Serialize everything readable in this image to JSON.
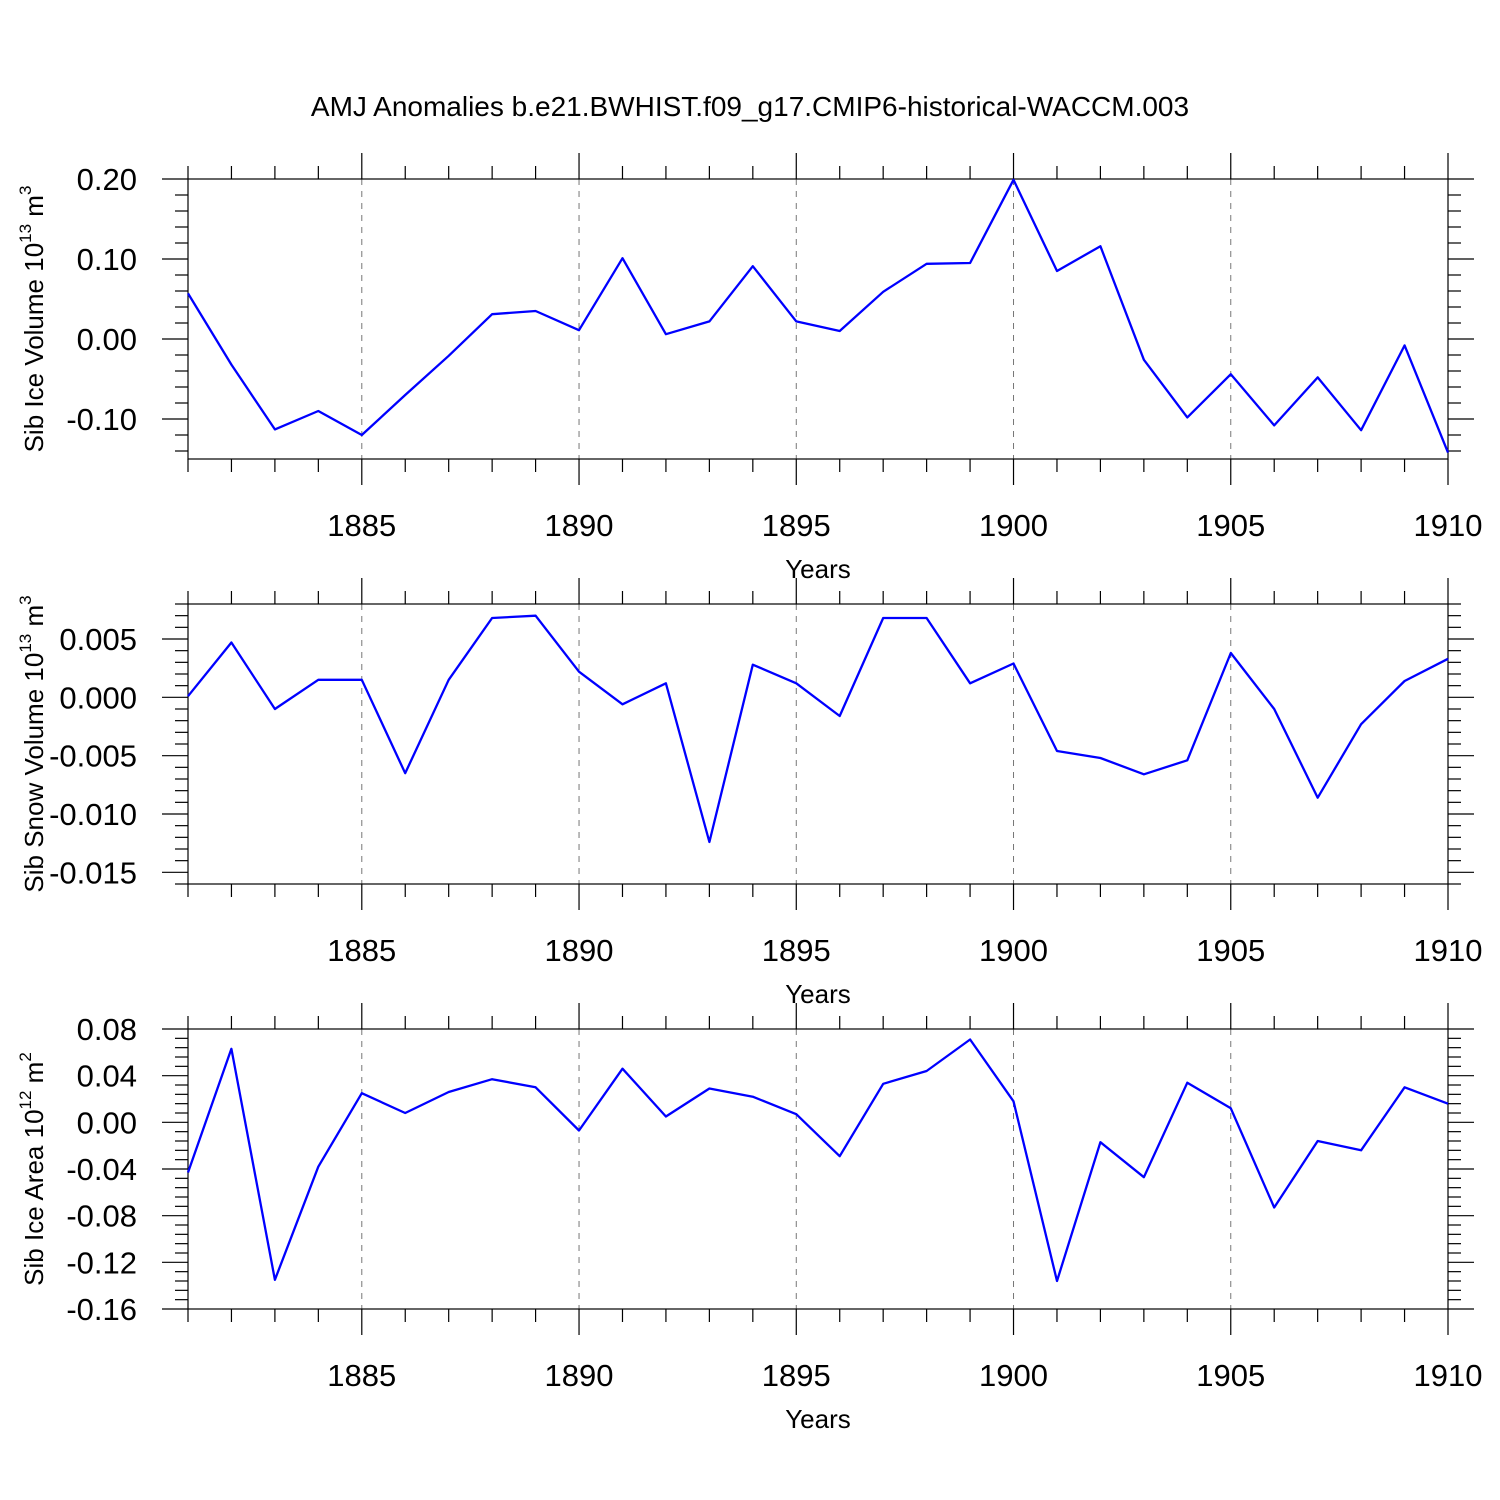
{
  "title": "AMJ Anomalies b.e21.BWHIST.f09_g17.CMIP6-historical-WACCM.003",
  "colors": {
    "line": "#0000ff",
    "axis": "#000000",
    "grid": "#777777"
  },
  "chart_data": [
    {
      "type": "line",
      "ylabel": "Sib Ice Volume 10",
      "ylabel_exp": "13",
      "ylabel_unit": " m",
      "ylabel_unit_exp": "3",
      "xlabel": "Years",
      "xlim": [
        1881,
        1910
      ],
      "ylim": [
        -0.15,
        0.2
      ],
      "yticks": [
        0.2,
        0.1,
        0.0,
        -0.1
      ],
      "ytick_labels": [
        "0.20",
        "0.10",
        "0.00",
        "-0.10"
      ],
      "yminor_step": 0.02,
      "xticks": [
        1885,
        1890,
        1895,
        1900,
        1905,
        1910
      ],
      "xtick_labels": [
        "1885",
        "1890",
        "1895",
        "1900",
        "1905",
        "1910"
      ],
      "grid_x": true,
      "series": [
        {
          "name": "Sib Ice Volume",
          "x": [
            1881,
            1882,
            1883,
            1884,
            1885,
            1886,
            1887,
            1888,
            1889,
            1890,
            1891,
            1892,
            1893,
            1894,
            1895,
            1896,
            1897,
            1898,
            1899,
            1900,
            1901,
            1902,
            1903,
            1904,
            1905,
            1906,
            1907,
            1908,
            1909,
            1910
          ],
          "values": [
            0.057,
            -0.032,
            -0.113,
            -0.09,
            -0.12,
            -0.07,
            -0.021,
            0.031,
            0.035,
            0.011,
            0.101,
            0.006,
            0.022,
            0.091,
            0.022,
            0.01,
            0.059,
            0.094,
            0.095,
            0.199,
            0.085,
            0.116,
            -0.026,
            -0.098,
            -0.044,
            -0.108,
            -0.048,
            -0.114,
            -0.008,
            -0.142
          ]
        }
      ]
    },
    {
      "type": "line",
      "ylabel": "Sib Snow Volume 10",
      "ylabel_exp": "13",
      "ylabel_unit": " m",
      "ylabel_unit_exp": "3",
      "xlabel": "Years",
      "xlim": [
        1881,
        1910
      ],
      "ylim": [
        -0.016,
        0.008
      ],
      "yticks": [
        0.005,
        0.0,
        -0.005,
        -0.01,
        -0.015
      ],
      "ytick_labels": [
        "0.005",
        "0.000",
        "-0.005",
        "-0.010",
        "-0.015"
      ],
      "yminor_step": 0.001,
      "xticks": [
        1885,
        1890,
        1895,
        1900,
        1905,
        1910
      ],
      "xtick_labels": [
        "1885",
        "1890",
        "1895",
        "1900",
        "1905",
        "1910"
      ],
      "grid_x": true,
      "series": [
        {
          "name": "Sib Snow Volume",
          "x": [
            1881,
            1882,
            1883,
            1884,
            1885,
            1886,
            1887,
            1888,
            1889,
            1890,
            1891,
            1892,
            1893,
            1894,
            1895,
            1896,
            1897,
            1898,
            1899,
            1900,
            1901,
            1902,
            1903,
            1904,
            1905,
            1906,
            1907,
            1908,
            1909,
            1910
          ],
          "values": [
            0.0001,
            0.0047,
            -0.001,
            0.0015,
            0.0015,
            -0.0065,
            0.0015,
            0.0068,
            0.007,
            0.0022,
            -0.0006,
            0.0012,
            -0.0124,
            0.0028,
            0.0012,
            -0.0016,
            0.0068,
            0.0068,
            0.0012,
            0.0029,
            -0.0046,
            -0.0052,
            -0.0066,
            -0.0054,
            0.0038,
            -0.001,
            -0.0086,
            -0.0023,
            0.0014,
            0.0033
          ]
        }
      ]
    },
    {
      "type": "line",
      "ylabel": "Sib Ice Area 10",
      "ylabel_exp": "12",
      "ylabel_unit": " m",
      "ylabel_unit_exp": "2",
      "xlabel": "Years",
      "xlim": [
        1881,
        1910
      ],
      "ylim": [
        -0.16,
        0.08
      ],
      "yticks": [
        0.08,
        0.04,
        0.0,
        -0.04,
        -0.08,
        -0.12,
        -0.16
      ],
      "ytick_labels": [
        "0.08",
        "0.04",
        "0.00",
        "-0.04",
        "-0.08",
        "-0.12",
        "-0.16"
      ],
      "yminor_step": 0.008,
      "xticks": [
        1885,
        1890,
        1895,
        1900,
        1905,
        1910
      ],
      "xtick_labels": [
        "1885",
        "1890",
        "1895",
        "1900",
        "1905",
        "1910"
      ],
      "grid_x": true,
      "series": [
        {
          "name": "Sib Ice Area",
          "x": [
            1881,
            1882,
            1883,
            1884,
            1885,
            1886,
            1887,
            1888,
            1889,
            1890,
            1891,
            1892,
            1893,
            1894,
            1895,
            1896,
            1897,
            1898,
            1899,
            1900,
            1901,
            1902,
            1903,
            1904,
            1905,
            1906,
            1907,
            1908,
            1909,
            1910
          ],
          "values": [
            -0.043,
            0.063,
            -0.135,
            -0.038,
            0.025,
            0.008,
            0.026,
            0.037,
            0.03,
            -0.007,
            0.046,
            0.005,
            0.029,
            0.022,
            0.007,
            -0.029,
            0.033,
            0.044,
            0.071,
            0.018,
            -0.136,
            -0.017,
            -0.047,
            0.034,
            0.012,
            -0.073,
            -0.016,
            -0.024,
            0.03,
            0.016
          ]
        }
      ]
    }
  ]
}
